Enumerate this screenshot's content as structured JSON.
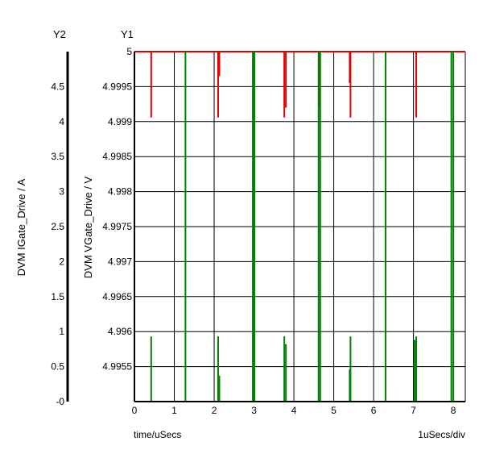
{
  "chart_data": {
    "type": "line",
    "title": "",
    "axis_names": {
      "y2": "Y2",
      "y1": "Y1"
    },
    "ylabel_y1": "DVM VGate_Drive / V",
    "ylabel_y2": "DVM IGate_Drive / A",
    "xlabel": "time/uSecs",
    "xscale_label": "1uSecs/div",
    "xlim": [
      0,
      8.3
    ],
    "y1lim": [
      4.995,
      5.0
    ],
    "y2lim": [
      0,
      5.0
    ],
    "grid": true,
    "x_ticks": [
      0,
      1,
      2,
      3,
      4,
      5,
      6,
      7,
      8
    ],
    "x_tick_labels": [
      "0",
      "1",
      "2",
      "3",
      "4",
      "5",
      "6",
      "7",
      "8"
    ],
    "y1_ticks": [
      4.9955,
      4.996,
      4.9965,
      4.997,
      4.9975,
      4.998,
      4.9985,
      4.999,
      4.9995,
      5.0
    ],
    "y1_tick_labels": [
      "4.9955",
      "4.996",
      "4.9965",
      "4.997",
      "4.9975",
      "4.998",
      "4.9985",
      "4.999",
      "4.9995",
      "5"
    ],
    "y2_ticks": [
      0,
      0.5,
      1,
      1.5,
      2,
      2.5,
      3,
      3.5,
      4,
      4.5
    ],
    "y2_tick_labels": [
      "-0",
      "0.5",
      "1",
      "1.5",
      "2",
      "2.5",
      "3",
      "3.5",
      "4",
      "4.5"
    ],
    "series": [
      {
        "axis": "y1",
        "color": "#e00000",
        "baseline": 5.0,
        "spikes": [
          {
            "x": 0.42,
            "y": 4.99906
          },
          {
            "x": 2.1,
            "y": 4.99906
          },
          {
            "x": 2.13,
            "y": 4.99965
          },
          {
            "x": 3.76,
            "y": 4.99906
          },
          {
            "x": 3.8,
            "y": 4.9992
          },
          {
            "x": 4.65,
            "y": 4.9992
          },
          {
            "x": 5.42,
            "y": 4.99906
          },
          {
            "x": 5.4,
            "y": 4.99955
          },
          {
            "x": 7.07,
            "y": 4.99906
          }
        ]
      },
      {
        "axis": "y1",
        "color": "#008000",
        "baseline": 4.995,
        "spikes": [
          {
            "x": 0.42,
            "y": 4.99593
          },
          {
            "x": 1.28,
            "y": 5.0
          },
          {
            "x": 2.1,
            "y": 4.99593
          },
          {
            "x": 2.13,
            "y": 4.99537
          },
          {
            "x": 2.97,
            "y": 5.0
          },
          {
            "x": 3.01,
            "y": 5.0
          },
          {
            "x": 3.76,
            "y": 4.99593
          },
          {
            "x": 3.8,
            "y": 4.99582
          },
          {
            "x": 4.62,
            "y": 5.0
          },
          {
            "x": 4.66,
            "y": 5.0
          },
          {
            "x": 5.4,
            "y": 4.99546
          },
          {
            "x": 5.42,
            "y": 4.99593
          },
          {
            "x": 6.3,
            "y": 5.0
          },
          {
            "x": 7.03,
            "y": 4.99588
          },
          {
            "x": 7.07,
            "y": 4.99593
          },
          {
            "x": 7.95,
            "y": 5.0
          },
          {
            "x": 8.0,
            "y": 5.0
          }
        ]
      }
    ]
  }
}
